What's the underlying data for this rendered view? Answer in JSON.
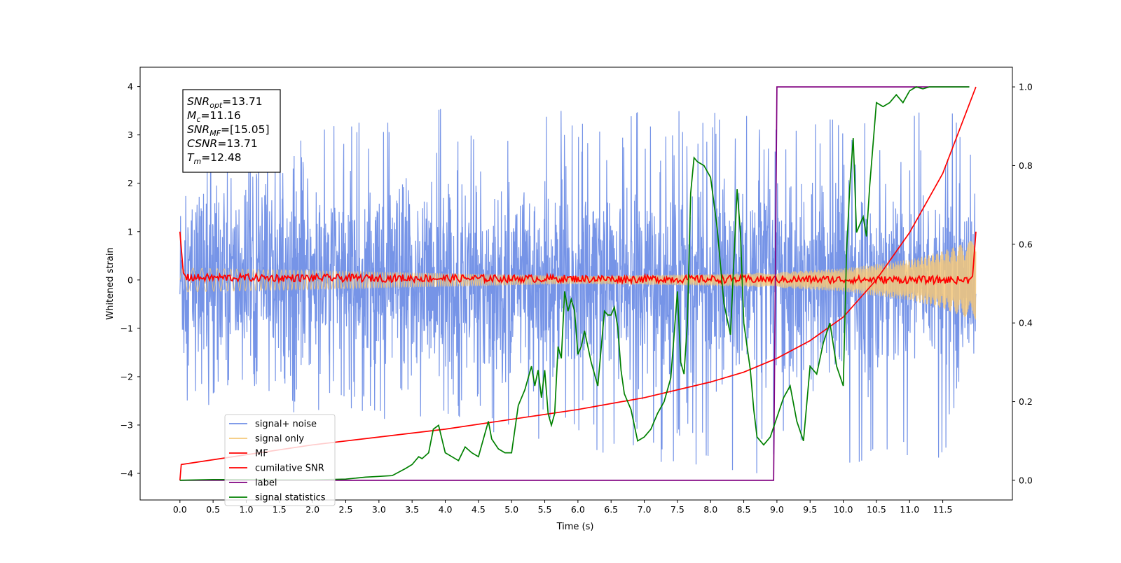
{
  "chart_data": {
    "type": "line",
    "xlabel": "Time (s)",
    "ylabel": "Whitened strain",
    "xlim": [
      -0.6,
      12.55
    ],
    "ylim": [
      -4.55,
      4.4
    ],
    "y2lim": [
      -0.05,
      1.05
    ],
    "x_ticks": [
      "0.0",
      "0.5",
      "1.0",
      "1.5",
      "2.0",
      "2.5",
      "3.0",
      "3.5",
      "4.0",
      "4.5",
      "5.0",
      "5.5",
      "6.0",
      "6.5",
      "7.0",
      "7.5",
      "8.0",
      "8.5",
      "9.0",
      "9.5",
      "10.0",
      "10.5",
      "11.0",
      "11.5"
    ],
    "y_ticks": [
      "−4",
      "−3",
      "−2",
      "−1",
      "0",
      "1",
      "2",
      "3",
      "4"
    ],
    "y2_ticks": [
      "0.0",
      "0.2",
      "0.4",
      "0.6",
      "0.8",
      "1.0"
    ],
    "grid": false,
    "legend_position": "lower-left",
    "annotation": [
      {
        "base": "SNR",
        "sub": "opt",
        "value": "=13.71"
      },
      {
        "base": "M",
        "sub": "c",
        "value": "=11.16"
      },
      {
        "base": "SNR",
        "sub": "MF",
        "value": "=[15.05]"
      },
      {
        "base": "CSNR",
        "sub": "",
        "value": "=13.71"
      },
      {
        "base": "T",
        "sub": "m",
        "value": "=12.48"
      }
    ],
    "noise_envelope": {
      "x": [
        0.0,
        0.05,
        3.6,
        4.0,
        8.5,
        10.2,
        11.9,
        12.0
      ],
      "upper_typical": [
        2.3,
        2.2,
        3.9,
        3.5,
        3.5,
        3.4,
        3.6,
        3.5
      ],
      "lower_typical": [
        -2.1,
        -2.7,
        -2.9,
        -3.0,
        -4.1,
        -4.15,
        -3.6,
        -3.5
      ]
    },
    "series": [
      {
        "name": "signal+ noise",
        "color": "#6f8ee6",
        "axis": "left",
        "kind": "noise-band"
      },
      {
        "name": "signal only",
        "color": "#f5c87a",
        "axis": "left",
        "kind": "chirp",
        "envelope_x": [
          0.0,
          6.0,
          8.0,
          9.0,
          10.0,
          11.0,
          11.5,
          12.0
        ],
        "envelope_y": [
          0.25,
          0.08,
          0.12,
          0.16,
          0.24,
          0.42,
          0.6,
          0.85
        ]
      },
      {
        "name": "MF",
        "color": "#ff0000",
        "axis": "left",
        "x": [
          0.0,
          0.05,
          0.1,
          11.9,
          11.95,
          12.0
        ],
        "y": [
          1.0,
          0.15,
          0.05,
          0.0,
          0.08,
          1.0
        ]
      },
      {
        "name": "cumilative SNR",
        "color": "#ff0000",
        "axis": "right",
        "x": [
          0.0,
          0.02,
          1,
          2,
          3,
          4,
          5,
          6,
          7,
          8,
          8.5,
          9,
          9.5,
          10,
          10.5,
          11,
          11.5,
          12
        ],
        "y": [
          0.0,
          0.04,
          0.065,
          0.09,
          0.11,
          0.13,
          0.155,
          0.18,
          0.21,
          0.25,
          0.275,
          0.31,
          0.355,
          0.415,
          0.51,
          0.63,
          0.78,
          1.0
        ]
      },
      {
        "name": "label",
        "color": "#800080",
        "axis": "right",
        "x": [
          0.0,
          8.95,
          9.0,
          11.9
        ],
        "y": [
          0.0,
          0.0,
          1.0,
          1.0
        ]
      },
      {
        "name": "signal statistics",
        "color": "#008000",
        "axis": "right",
        "x": [
          0.0,
          0.5,
          1.0,
          1.5,
          2.0,
          2.5,
          2.8,
          3.0,
          3.2,
          3.4,
          3.5,
          3.6,
          3.65,
          3.75,
          3.82,
          3.9,
          4.0,
          4.1,
          4.2,
          4.3,
          4.4,
          4.5,
          4.6,
          4.65,
          4.7,
          4.8,
          4.9,
          5.0,
          5.1,
          5.2,
          5.3,
          5.35,
          5.4,
          5.45,
          5.5,
          5.55,
          5.6,
          5.65,
          5.7,
          5.75,
          5.8,
          5.85,
          5.9,
          5.95,
          6.0,
          6.05,
          6.1,
          6.2,
          6.3,
          6.4,
          6.45,
          6.5,
          6.55,
          6.6,
          6.65,
          6.7,
          6.8,
          6.9,
          7.0,
          7.1,
          7.2,
          7.3,
          7.4,
          7.5,
          7.55,
          7.6,
          7.65,
          7.7,
          7.75,
          7.8,
          7.9,
          8.0,
          8.1,
          8.2,
          8.3,
          8.4,
          8.45,
          8.5,
          8.6,
          8.65,
          8.7,
          8.8,
          8.9,
          9.0,
          9.1,
          9.2,
          9.3,
          9.4,
          9.5,
          9.6,
          9.7,
          9.8,
          9.9,
          10.0,
          10.05,
          10.1,
          10.15,
          10.2,
          10.25,
          10.3,
          10.35,
          10.4,
          10.5,
          10.6,
          10.7,
          10.8,
          10.9,
          11.0,
          11.1,
          11.2,
          11.3,
          11.5,
          11.9
        ],
        "y": [
          0.0,
          0.002,
          0.002,
          0.001,
          0.001,
          0.003,
          0.008,
          0.01,
          0.012,
          0.03,
          0.04,
          0.06,
          0.055,
          0.07,
          0.13,
          0.14,
          0.07,
          0.06,
          0.05,
          0.085,
          0.07,
          0.06,
          0.12,
          0.15,
          0.105,
          0.08,
          0.07,
          0.07,
          0.19,
          0.23,
          0.29,
          0.24,
          0.28,
          0.21,
          0.28,
          0.17,
          0.14,
          0.17,
          0.34,
          0.31,
          0.48,
          0.43,
          0.46,
          0.43,
          0.32,
          0.34,
          0.38,
          0.3,
          0.24,
          0.43,
          0.42,
          0.42,
          0.44,
          0.39,
          0.28,
          0.22,
          0.18,
          0.1,
          0.11,
          0.13,
          0.17,
          0.2,
          0.26,
          0.48,
          0.3,
          0.27,
          0.4,
          0.73,
          0.82,
          0.81,
          0.8,
          0.77,
          0.64,
          0.45,
          0.37,
          0.74,
          0.63,
          0.4,
          0.28,
          0.18,
          0.11,
          0.09,
          0.11,
          0.16,
          0.21,
          0.24,
          0.15,
          0.1,
          0.29,
          0.27,
          0.35,
          0.4,
          0.29,
          0.24,
          0.58,
          0.75,
          0.87,
          0.63,
          0.65,
          0.67,
          0.62,
          0.75,
          0.96,
          0.95,
          0.96,
          0.98,
          0.96,
          0.99,
          1.0,
          0.995,
          1.0,
          1.0,
          1.0
        ]
      }
    ]
  }
}
